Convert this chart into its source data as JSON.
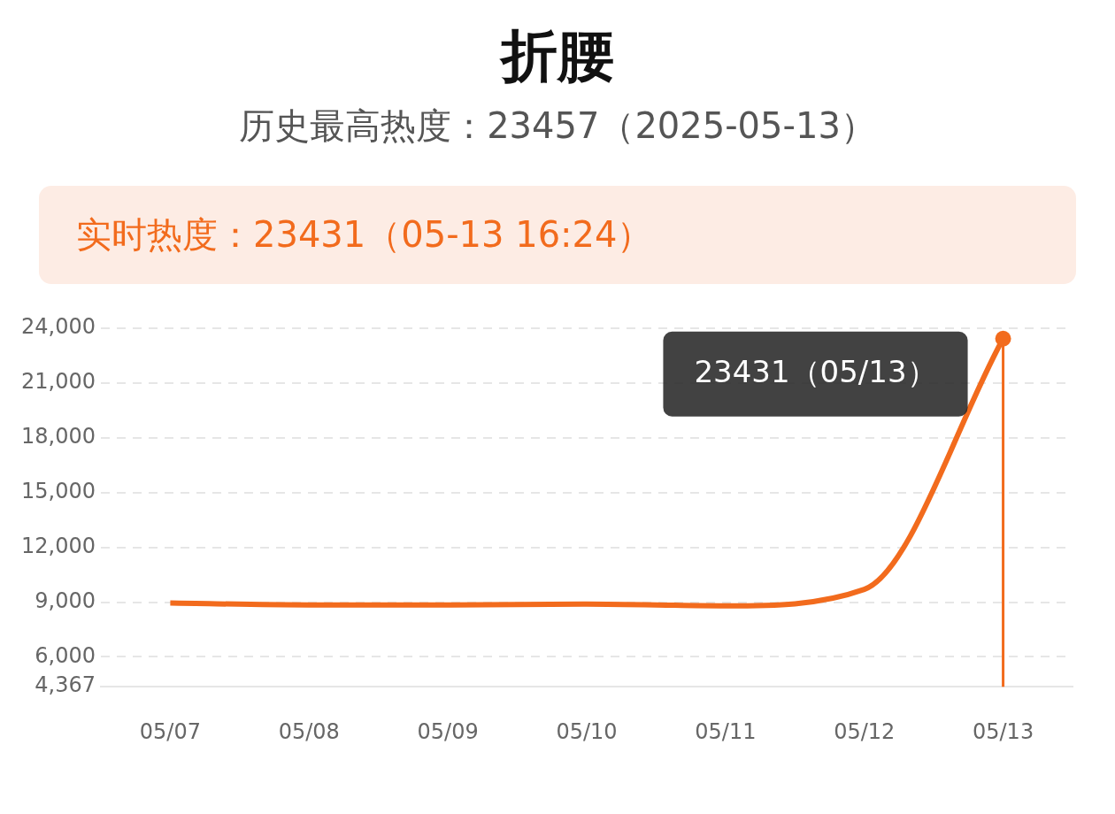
{
  "chart_data": {
    "type": "line",
    "title": "折腰",
    "subtitle": "历史最高热度：23457（2025-05-13）",
    "annotations": [
      "实时热度：23431（05-13 16:24）",
      {
        "text": "23431（05/13）",
        "x": "05/13",
        "y": 23431
      }
    ],
    "categories": [
      "05/07",
      "05/08",
      "05/09",
      "05/10",
      "05/11",
      "05/12",
      "05/13"
    ],
    "series": [
      {
        "color": "#f26b1d",
        "values": [
          8950,
          8850,
          8850,
          8900,
          8800,
          9700,
          23431
        ]
      }
    ],
    "ref_lines": [
      {
        "axis": "x",
        "value": "05/13",
        "color": "#f26b1d"
      }
    ],
    "ylim": [
      4367,
      24000
    ],
    "yticks": [
      {
        "value": 4367,
        "label": "4,367"
      },
      {
        "value": 6000,
        "label": "6,000"
      },
      {
        "value": 9000,
        "label": "9,000"
      },
      {
        "value": 12000,
        "label": "12,000"
      },
      {
        "value": 15000,
        "label": "15,000"
      },
      {
        "value": 18000,
        "label": "18,000"
      },
      {
        "value": 21000,
        "label": "21,000"
      },
      {
        "value": 24000,
        "label": "24,000"
      }
    ],
    "grid": "y",
    "marker": "none",
    "line_style": "solid",
    "legend": false
  }
}
